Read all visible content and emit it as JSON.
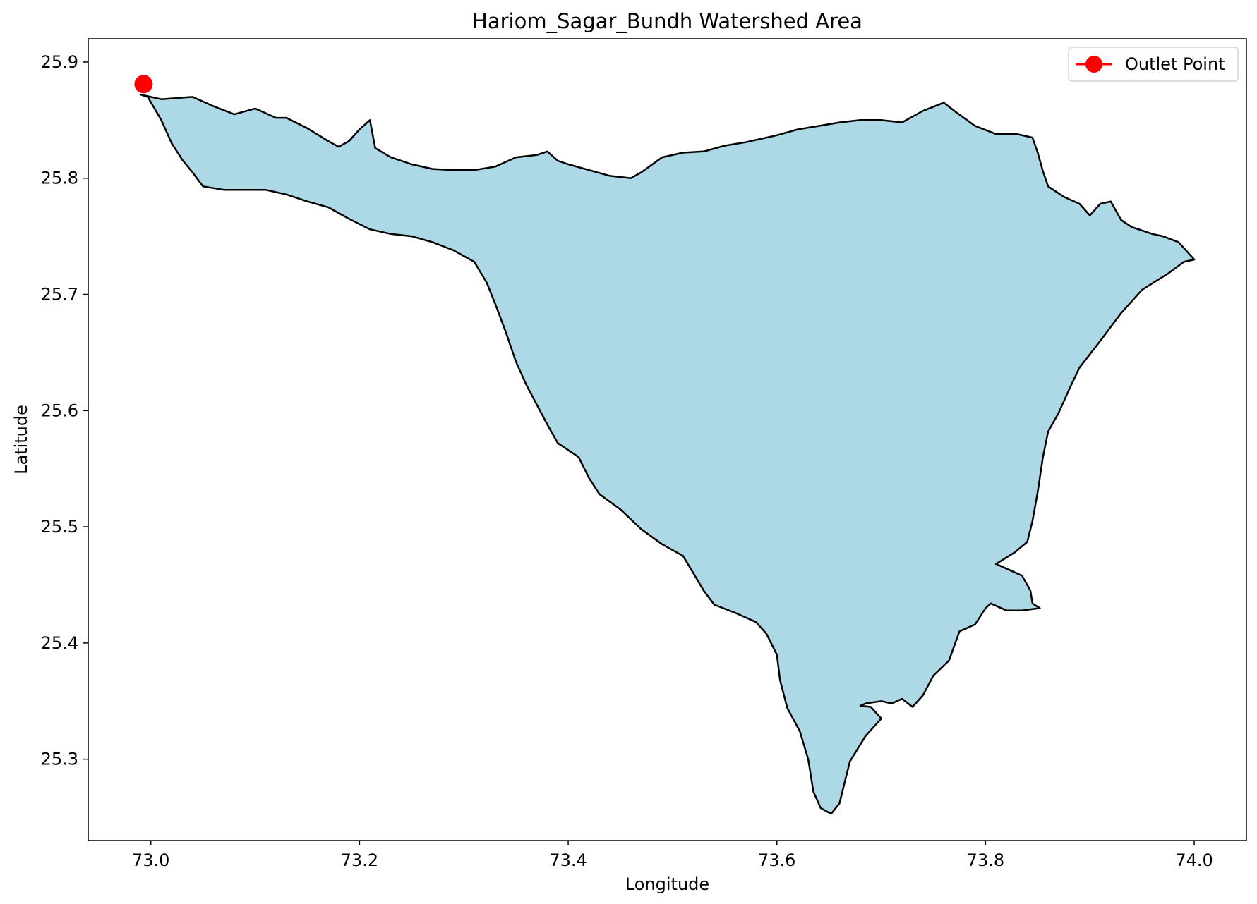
{
  "chart_data": {
    "type": "map",
    "title": "Hariom_Sagar_Bundh Watershed Area",
    "xlabel": "Longitude",
    "ylabel": "Latitude",
    "xlim": [
      72.94,
      74.05
    ],
    "ylim": [
      25.23,
      25.92
    ],
    "xticks": [
      73.0,
      73.2,
      73.4,
      73.6,
      73.8,
      74.0
    ],
    "xtick_labels": [
      "73.0",
      "73.2",
      "73.4",
      "73.6",
      "73.8",
      "74.0"
    ],
    "yticks": [
      25.3,
      25.4,
      25.5,
      25.6,
      25.7,
      25.8,
      25.9
    ],
    "ytick_labels": [
      "25.3",
      "25.4",
      "25.5",
      "25.6",
      "25.7",
      "25.8",
      "25.9"
    ],
    "watershed": {
      "fill_color": "#add8e6",
      "edge_color": "#000000",
      "boundary": [
        [
          72.99,
          25.872
        ],
        [
          73.01,
          25.868
        ],
        [
          73.04,
          25.87
        ],
        [
          73.06,
          25.862
        ],
        [
          73.08,
          25.855
        ],
        [
          73.1,
          25.86
        ],
        [
          73.12,
          25.852
        ],
        [
          73.13,
          25.852
        ],
        [
          73.15,
          25.843
        ],
        [
          73.17,
          25.832
        ],
        [
          73.18,
          25.827
        ],
        [
          73.19,
          25.832
        ],
        [
          73.2,
          25.842
        ],
        [
          73.21,
          25.85
        ],
        [
          73.215,
          25.826
        ],
        [
          73.23,
          25.818
        ],
        [
          73.25,
          25.812
        ],
        [
          73.27,
          25.808
        ],
        [
          73.29,
          25.807
        ],
        [
          73.31,
          25.807
        ],
        [
          73.33,
          25.81
        ],
        [
          73.35,
          25.818
        ],
        [
          73.37,
          25.82
        ],
        [
          73.38,
          25.823
        ],
        [
          73.39,
          25.815
        ],
        [
          73.4,
          25.812
        ],
        [
          73.42,
          25.807
        ],
        [
          73.44,
          25.802
        ],
        [
          73.46,
          25.8
        ],
        [
          73.47,
          25.805
        ],
        [
          73.49,
          25.818
        ],
        [
          73.51,
          25.822
        ],
        [
          73.53,
          25.823
        ],
        [
          73.55,
          25.828
        ],
        [
          73.57,
          25.831
        ],
        [
          73.6,
          25.837
        ],
        [
          73.62,
          25.842
        ],
        [
          73.64,
          25.845
        ],
        [
          73.66,
          25.848
        ],
        [
          73.68,
          25.85
        ],
        [
          73.7,
          25.85
        ],
        [
          73.72,
          25.848
        ],
        [
          73.74,
          25.858
        ],
        [
          73.76,
          25.865
        ],
        [
          73.77,
          25.858
        ],
        [
          73.79,
          25.845
        ],
        [
          73.81,
          25.838
        ],
        [
          73.83,
          25.838
        ],
        [
          73.845,
          25.835
        ],
        [
          73.85,
          25.822
        ],
        [
          73.855,
          25.806
        ],
        [
          73.86,
          25.793
        ],
        [
          73.875,
          25.784
        ],
        [
          73.89,
          25.778
        ],
        [
          73.9,
          25.768
        ],
        [
          73.91,
          25.778
        ],
        [
          73.92,
          25.78
        ],
        [
          73.93,
          25.764
        ],
        [
          73.94,
          25.758
        ],
        [
          73.96,
          25.752
        ],
        [
          73.97,
          25.75
        ],
        [
          73.985,
          25.745
        ],
        [
          74.0,
          25.73
        ],
        [
          73.99,
          25.728
        ],
        [
          73.975,
          25.718
        ],
        [
          73.95,
          25.704
        ],
        [
          73.93,
          25.684
        ],
        [
          73.91,
          25.66
        ],
        [
          73.89,
          25.637
        ],
        [
          73.88,
          25.618
        ],
        [
          73.87,
          25.598
        ],
        [
          73.86,
          25.582
        ],
        [
          73.855,
          25.56
        ],
        [
          73.85,
          25.53
        ],
        [
          73.845,
          25.505
        ],
        [
          73.84,
          25.487
        ],
        [
          73.828,
          25.478
        ],
        [
          73.81,
          25.468
        ],
        [
          73.835,
          25.458
        ],
        [
          73.843,
          25.445
        ],
        [
          73.845,
          25.434
        ],
        [
          73.852,
          25.43
        ],
        [
          73.835,
          25.428
        ],
        [
          73.82,
          25.428
        ],
        [
          73.805,
          25.434
        ],
        [
          73.8,
          25.43
        ],
        [
          73.79,
          25.416
        ],
        [
          73.775,
          25.41
        ],
        [
          73.765,
          25.385
        ],
        [
          73.75,
          25.372
        ],
        [
          73.74,
          25.355
        ],
        [
          73.73,
          25.345
        ],
        [
          73.72,
          25.352
        ],
        [
          73.71,
          25.348
        ],
        [
          73.7,
          25.35
        ],
        [
          73.685,
          25.348
        ],
        [
          73.68,
          25.346
        ],
        [
          73.69,
          25.345
        ],
        [
          73.7,
          25.335
        ],
        [
          73.685,
          25.32
        ],
        [
          73.67,
          25.298
        ],
        [
          73.665,
          25.28
        ],
        [
          73.66,
          25.262
        ],
        [
          73.652,
          25.253
        ],
        [
          73.642,
          25.258
        ],
        [
          73.635,
          25.272
        ],
        [
          73.63,
          25.3
        ],
        [
          73.622,
          25.324
        ],
        [
          73.61,
          25.344
        ],
        [
          73.603,
          25.368
        ],
        [
          73.6,
          25.39
        ],
        [
          73.59,
          25.408
        ],
        [
          73.58,
          25.418
        ],
        [
          73.56,
          25.426
        ],
        [
          73.54,
          25.433
        ],
        [
          73.53,
          25.445
        ],
        [
          73.52,
          25.46
        ],
        [
          73.51,
          25.475
        ],
        [
          73.49,
          25.485
        ],
        [
          73.47,
          25.498
        ],
        [
          73.45,
          25.515
        ],
        [
          73.43,
          25.528
        ],
        [
          73.42,
          25.542
        ],
        [
          73.41,
          25.56
        ],
        [
          73.39,
          25.572
        ],
        [
          73.38,
          25.588
        ],
        [
          73.37,
          25.605
        ],
        [
          73.36,
          25.622
        ],
        [
          73.35,
          25.642
        ],
        [
          73.34,
          25.668
        ],
        [
          73.33,
          25.692
        ],
        [
          73.322,
          25.71
        ],
        [
          73.31,
          25.728
        ],
        [
          73.29,
          25.738
        ],
        [
          73.27,
          25.745
        ],
        [
          73.25,
          25.75
        ],
        [
          73.23,
          25.752
        ],
        [
          73.21,
          25.756
        ],
        [
          73.19,
          25.765
        ],
        [
          73.17,
          25.775
        ],
        [
          73.15,
          25.78
        ],
        [
          73.13,
          25.786
        ],
        [
          73.11,
          25.79
        ],
        [
          73.09,
          25.79
        ],
        [
          73.07,
          25.79
        ],
        [
          73.05,
          25.793
        ],
        [
          73.04,
          25.805
        ],
        [
          73.03,
          25.816
        ],
        [
          73.02,
          25.83
        ],
        [
          73.01,
          25.85
        ],
        [
          72.997,
          25.87
        ]
      ]
    },
    "series": [
      {
        "name": "Outlet Point",
        "type": "point",
        "color": "#ff0000",
        "points": [
          [
            72.993,
            25.881
          ]
        ]
      }
    ],
    "legend": {
      "position": "top-right",
      "entries": [
        "Outlet Point"
      ]
    },
    "grid": false
  }
}
